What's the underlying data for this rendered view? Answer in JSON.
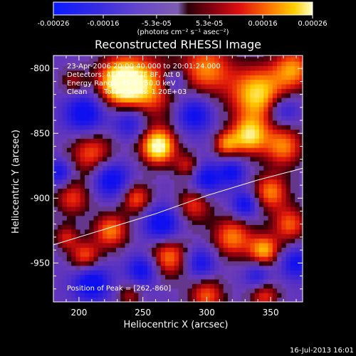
{
  "chart_data": {
    "type": "heatmap",
    "title": "Reconstructed RHESSI Image",
    "xlabel": "Heliocentric X (arcsec)",
    "ylabel": "Heliocentric Y (arcsec)",
    "xlim": [
      180,
      375
    ],
    "ylim": [
      -980,
      -790
    ],
    "x_ticks": [
      "200",
      "250",
      "300",
      "350"
    ],
    "x_tick_values": [
      200,
      250,
      300,
      350
    ],
    "y_ticks": [
      "-800",
      "-850",
      "-900",
      "-950"
    ],
    "y_tick_values": [
      -800,
      -850,
      -900,
      -950
    ],
    "colorbar": {
      "range": [
        -0.00026,
        0.00026
      ],
      "tick_labels": [
        "-0.00026",
        "-0.00016",
        "-5.3e-05",
        "5.3e-05",
        "0.00016",
        "0.00026"
      ],
      "tick_values": [
        -0.00026,
        -0.00016,
        -5.3e-05,
        5.3e-05,
        0.00016,
        0.00026
      ],
      "units_label": "(photons cm⁻² s⁻¹ asec⁻²)"
    },
    "annotations": {
      "time_range": "23-Apr-2006 20:00:40.000 to 20:01:24.000",
      "detectors": "Detectors: 4F 5F 6F 7F 8F, Att 0",
      "energy": "Energy Range: 25.0 - 50.0 keV",
      "algorithm": "Clean",
      "counts": "Total counts: 1.20E+03",
      "peak": "Position of Peak = [262,-860]"
    },
    "limb_curve": [
      [
        180,
        -936
      ],
      [
        220,
        -924
      ],
      [
        260,
        -912
      ],
      [
        300,
        -898
      ],
      [
        340,
        -886
      ],
      [
        375,
        -877
      ]
    ],
    "peak_position": [
      262,
      -860
    ],
    "timestamp": "16-Jul-2013 16:01"
  }
}
